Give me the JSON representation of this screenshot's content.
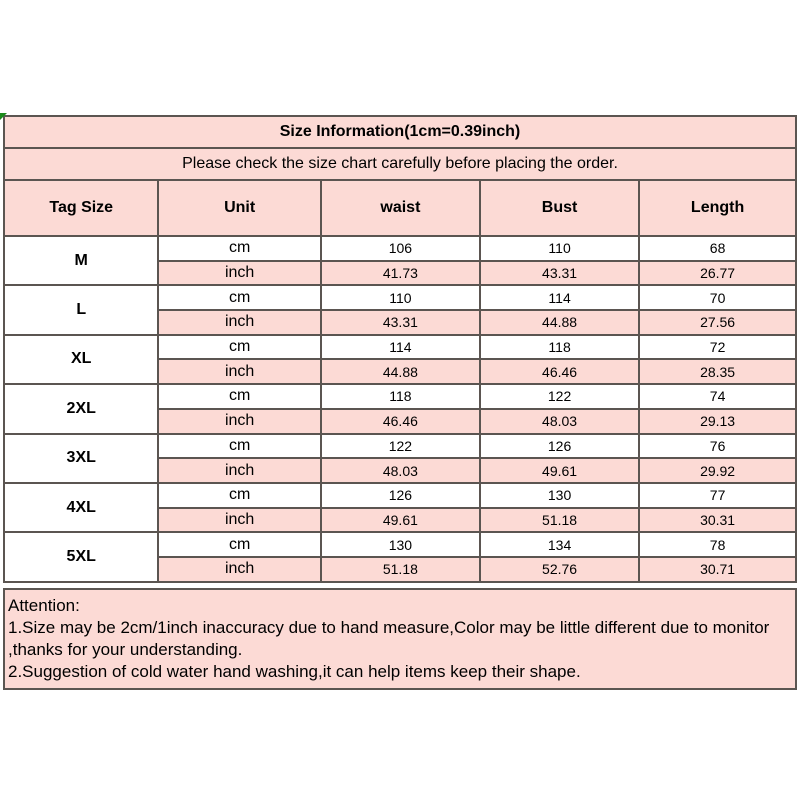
{
  "colors": {
    "pink": "#fcdad5",
    "border": "#5b5551",
    "green": "#1a8a1a"
  },
  "table": {
    "title": "Size Information(1cm=0.39inch)",
    "subtitle": "Please check the size chart carefully before placing the order.",
    "columns": [
      "Tag Size",
      "Unit",
      "waist",
      "Bust",
      "Length"
    ],
    "unit_labels": {
      "cm": "cm",
      "inch": "inch"
    },
    "sizes": [
      {
        "tag": "M",
        "cm": [
          "106",
          "110",
          "68"
        ],
        "inch": [
          "41.73",
          "43.31",
          "26.77"
        ]
      },
      {
        "tag": "L",
        "cm": [
          "110",
          "114",
          "70"
        ],
        "inch": [
          "43.31",
          "44.88",
          "27.56"
        ]
      },
      {
        "tag": "XL",
        "cm": [
          "114",
          "118",
          "72"
        ],
        "inch": [
          "44.88",
          "46.46",
          "28.35"
        ]
      },
      {
        "tag": "2XL",
        "cm": [
          "118",
          "122",
          "74"
        ],
        "inch": [
          "46.46",
          "48.03",
          "29.13"
        ]
      },
      {
        "tag": "3XL",
        "cm": [
          "122",
          "126",
          "76"
        ],
        "inch": [
          "48.03",
          "49.61",
          "29.92"
        ]
      },
      {
        "tag": "4XL",
        "cm": [
          "126",
          "130",
          "77"
        ],
        "inch": [
          "49.61",
          "51.18",
          "30.31"
        ]
      },
      {
        "tag": "5XL",
        "cm": [
          "130",
          "134",
          "78"
        ],
        "inch": [
          "51.18",
          "52.76",
          "30.71"
        ]
      }
    ]
  },
  "attention": {
    "heading": "Attention:",
    "lines": [
      "1.Size may be 2cm/1inch inaccuracy due to hand measure,Color may be little different due to monitor",
      ",thanks for your understanding.",
      "2.Suggestion of cold water hand washing,it can help items keep their shape."
    ]
  }
}
